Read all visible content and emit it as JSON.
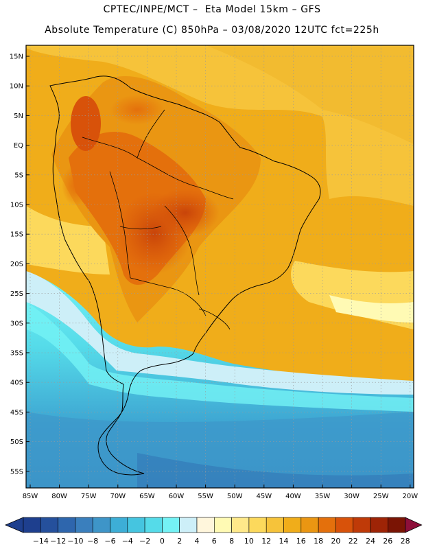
{
  "header": {
    "line1": "CPTEC/INPE/MCT –  Eta Model 15km – GFS",
    "line2": "Absolute Temperature (C) 850hPa – 03/08/2020 12UTC fct=225h"
  },
  "axes": {
    "lat_labels": [
      "15N",
      "10N",
      "5N",
      "EQ",
      "5S",
      "10S",
      "15S",
      "20S",
      "25S",
      "30S",
      "35S",
      "40S",
      "45S",
      "50S",
      "55S"
    ],
    "lon_labels": [
      "85W",
      "80W",
      "75W",
      "70W",
      "65W",
      "60W",
      "55W",
      "50W",
      "45W",
      "40W",
      "35W",
      "30W",
      "25W",
      "20W"
    ]
  },
  "colorbar": {
    "labels": [
      "-14",
      "-12",
      "-10",
      "-8",
      "-6",
      "-4",
      "-2",
      "0",
      "2",
      "4",
      "6",
      "8",
      "10",
      "12",
      "14",
      "16",
      "18",
      "20",
      "22",
      "24",
      "26",
      "28"
    ],
    "colors": [
      "#1e3f8e",
      "#25509c",
      "#2e66ad",
      "#3a7fbd",
      "#3e95c8",
      "#3daed6",
      "#45c5e0",
      "#55dbe9",
      "#74f2f5",
      "#cdeff8",
      "#fff6dc",
      "#fffab4",
      "#ffe98a",
      "#fcd95c",
      "#f6c33a",
      "#f0ad1a",
      "#ea9612",
      "#e4700c",
      "#d8520a",
      "#bf3a08",
      "#9e2406",
      "#7a1404",
      "#8e0f3a"
    ]
  }
}
